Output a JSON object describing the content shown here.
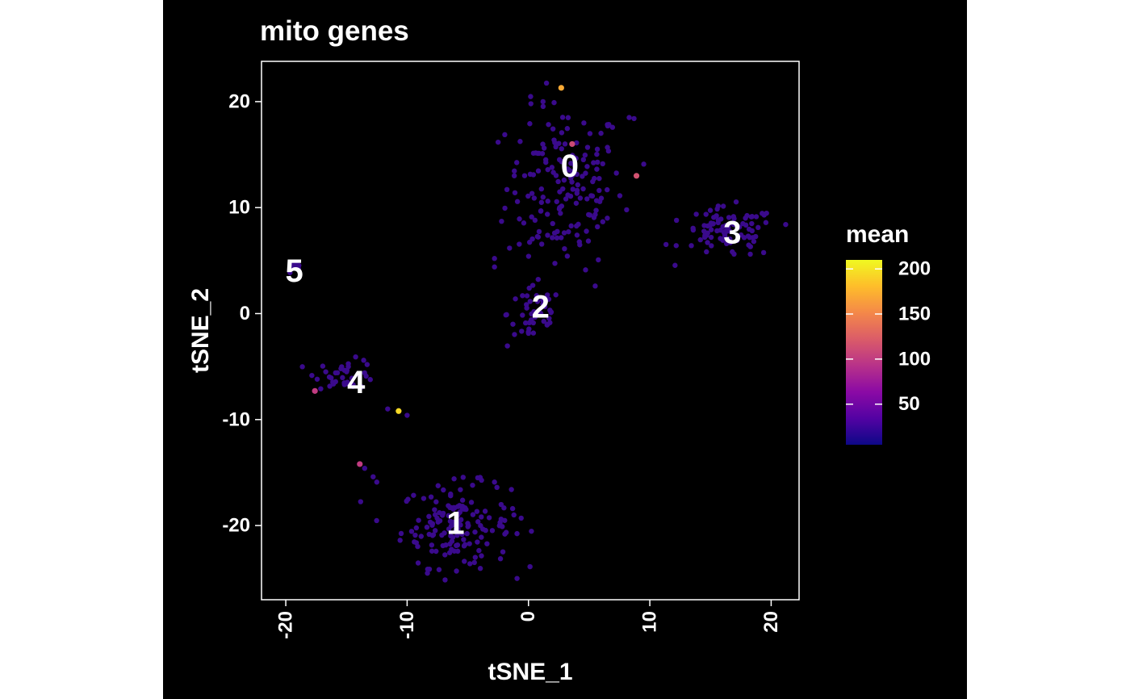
{
  "chart_data": {
    "type": "scatter",
    "title": "mito genes",
    "xlabel": "tSNE_1",
    "ylabel": "tSNE_2",
    "xlim": [
      -22,
      22.3
    ],
    "ylim": [
      -27,
      23.8
    ],
    "xticks": [
      -20,
      -10,
      0,
      10,
      20
    ],
    "yticks": [
      -20,
      -10,
      0,
      10,
      20
    ],
    "xtick_labels": [
      "-20",
      "-10",
      "0",
      "10",
      "20"
    ],
    "ytick_labels": [
      "-20",
      "-10",
      "0",
      "10",
      "20"
    ],
    "grid": false,
    "point_color_base": "#3a0a8c",
    "cluster_labels": [
      {
        "label": "0",
        "x": 3.4,
        "y": 13.9
      },
      {
        "label": "1",
        "x": -6.0,
        "y": -19.8
      },
      {
        "label": "2",
        "x": 1.0,
        "y": 0.6
      },
      {
        "label": "3",
        "x": 16.8,
        "y": 7.6
      },
      {
        "label": "4",
        "x": -14.2,
        "y": -6.5
      },
      {
        "label": "5",
        "x": -19.3,
        "y": 4.0
      }
    ],
    "clusters": [
      {
        "id": "0",
        "cx": 3.0,
        "cy": 12.0,
        "sx": 3.2,
        "sy": 5.2,
        "n": 170
      },
      {
        "id": "1",
        "cx": -6.0,
        "cy": -20.0,
        "sx": 3.0,
        "sy": 2.6,
        "n": 150
      },
      {
        "id": "2",
        "cx": 0.5,
        "cy": 0.0,
        "sx": 1.5,
        "sy": 2.2,
        "n": 50
      },
      {
        "id": "3",
        "cx": 16.5,
        "cy": 7.6,
        "sx": 2.6,
        "sy": 1.6,
        "n": 90
      },
      {
        "id": "4",
        "cx": -15.0,
        "cy": -5.7,
        "sx": 1.7,
        "sy": 0.9,
        "n": 38
      },
      {
        "id": "5",
        "cx": -19.3,
        "cy": 4.4,
        "sx": 0.35,
        "sy": 0.35,
        "n": 14
      }
    ],
    "highlight_points": [
      {
        "x": 2.7,
        "y": 21.3,
        "value": 170
      },
      {
        "x": 3.6,
        "y": 16.0,
        "value": 110
      },
      {
        "x": 8.9,
        "y": 13.0,
        "value": 115
      },
      {
        "x": -17.6,
        "y": -7.3,
        "value": 100
      },
      {
        "x": -13.9,
        "y": -14.2,
        "value": 100
      },
      {
        "x": -10.7,
        "y": -9.2,
        "value": 195
      }
    ],
    "extra_points": [
      {
        "x": 8.7,
        "y": 18.4
      },
      {
        "x": 8.3,
        "y": 18.5
      },
      {
        "x": 9.5,
        "y": 14.1
      },
      {
        "x": 12.2,
        "y": 8.8
      },
      {
        "x": 5.5,
        "y": 2.6
      },
      {
        "x": -2.8,
        "y": 5.2
      },
      {
        "x": -2.8,
        "y": 4.4
      },
      {
        "x": -13.5,
        "y": -14.6
      },
      {
        "x": -12.8,
        "y": -15.4
      },
      {
        "x": -12.5,
        "y": -15.9
      },
      {
        "x": -11.6,
        "y": -9.0
      },
      {
        "x": -10.0,
        "y": -9.6
      },
      {
        "x": -2.8,
        "y": -15.9
      },
      {
        "x": -2.6,
        "y": -16.4
      },
      {
        "x": -0.6,
        "y": -19.3
      },
      {
        "x": -1.2,
        "y": -19.0
      },
      {
        "x": 1.2,
        "y": 20.0
      },
      {
        "x": 0.2,
        "y": 19.8
      }
    ],
    "legend": {
      "title": "mean",
      "position": "right",
      "min": 5,
      "max": 210,
      "tick_values": [
        50,
        100,
        150,
        200
      ],
      "tick_labels": [
        "50",
        "100",
        "150",
        "200"
      ],
      "colors": [
        "#0d0887",
        "#5302a3",
        "#8b0aa5",
        "#b83289",
        "#db5c68",
        "#f48849",
        "#febd2a",
        "#f0f921"
      ]
    }
  }
}
